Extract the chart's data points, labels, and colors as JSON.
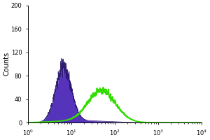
{
  "ylabel": "Counts",
  "ylim": [
    0,
    200
  ],
  "yticks": [
    0,
    40,
    80,
    120,
    160,
    200
  ],
  "xlim_log": [
    0,
    4
  ],
  "purple_mean_log": 0.82,
  "purple_std_log": 0.18,
  "purple_peak": 95,
  "purple_fill_color": "#5533bb",
  "purple_line_color": "#221166",
  "green_mean_log": 1.7,
  "green_std_log": 0.32,
  "green_peak": 55,
  "green_color": "#33dd00",
  "background_color": "#ffffff",
  "plot_bg_color": "#ffffff"
}
